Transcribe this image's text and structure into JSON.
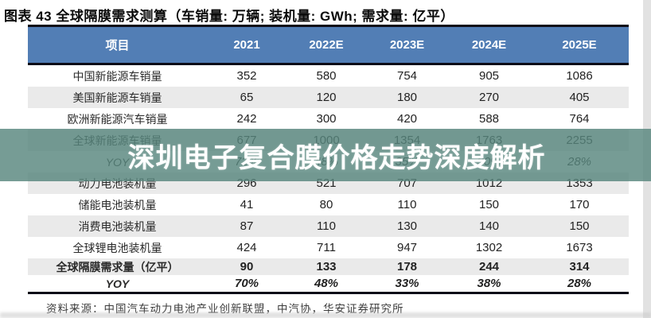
{
  "title": "图表 43 全球隔膜需求测算（车销量: 万辆; 装机量: GWh; 需求量: 亿平）",
  "watermark": "深圳电子复合膜价格走势深度解析",
  "source": "资料来源：中国汽车动力电池产业创新联盟，中汽协，华安证券研究所",
  "colors": {
    "header_bg": "#527eb5",
    "row_alt_bg": "#eaeaea",
    "watermark_band": "#5e867e",
    "divider": "#0c0c18"
  },
  "chart_data": {
    "type": "table",
    "title": "全球隔膜需求测算",
    "units": {
      "车销量": "万辆",
      "装机量": "GWh",
      "需求量": "亿平"
    },
    "columns": [
      "项目",
      "2021",
      "2022E",
      "2023E",
      "2024E",
      "2025E"
    ],
    "rows": [
      {
        "label": "中国新能源车销量",
        "values": [
          "352",
          "580",
          "754",
          "905",
          "1086"
        ]
      },
      {
        "label": "美国新能源车销量",
        "values": [
          "65",
          "120",
          "180",
          "270",
          "405"
        ]
      },
      {
        "label": "欧洲新能源汽车销量",
        "values": [
          "242",
          "300",
          "420",
          "588",
          "764"
        ]
      },
      {
        "label": "全球新能源车销量",
        "values": [
          "677",
          "1000",
          "1354",
          "1763",
          "2255"
        ]
      },
      {
        "label": "YOY",
        "values": [
          "72%",
          "48%",
          "35%",
          "30%",
          "28%"
        ]
      },
      {
        "label": "动力电池装机量",
        "values": [
          "296",
          "521",
          "707",
          "1012",
          "1353"
        ]
      },
      {
        "label": "储能电池装机量",
        "values": [
          "41",
          "80",
          "110",
          "150",
          "170"
        ]
      },
      {
        "label": "消费电池装机量",
        "values": [
          "87",
          "110",
          "130",
          "140",
          "150"
        ]
      },
      {
        "label": "全球锂电池装机量",
        "values": [
          "424",
          "711",
          "947",
          "1302",
          "1673"
        ]
      },
      {
        "label": "全球隔膜需求量（亿平）",
        "values": [
          "90",
          "133",
          "178",
          "244",
          "314"
        ]
      },
      {
        "label": "YOY",
        "values": [
          "70%",
          "48%",
          "33%",
          "38%",
          "28%"
        ]
      }
    ]
  }
}
